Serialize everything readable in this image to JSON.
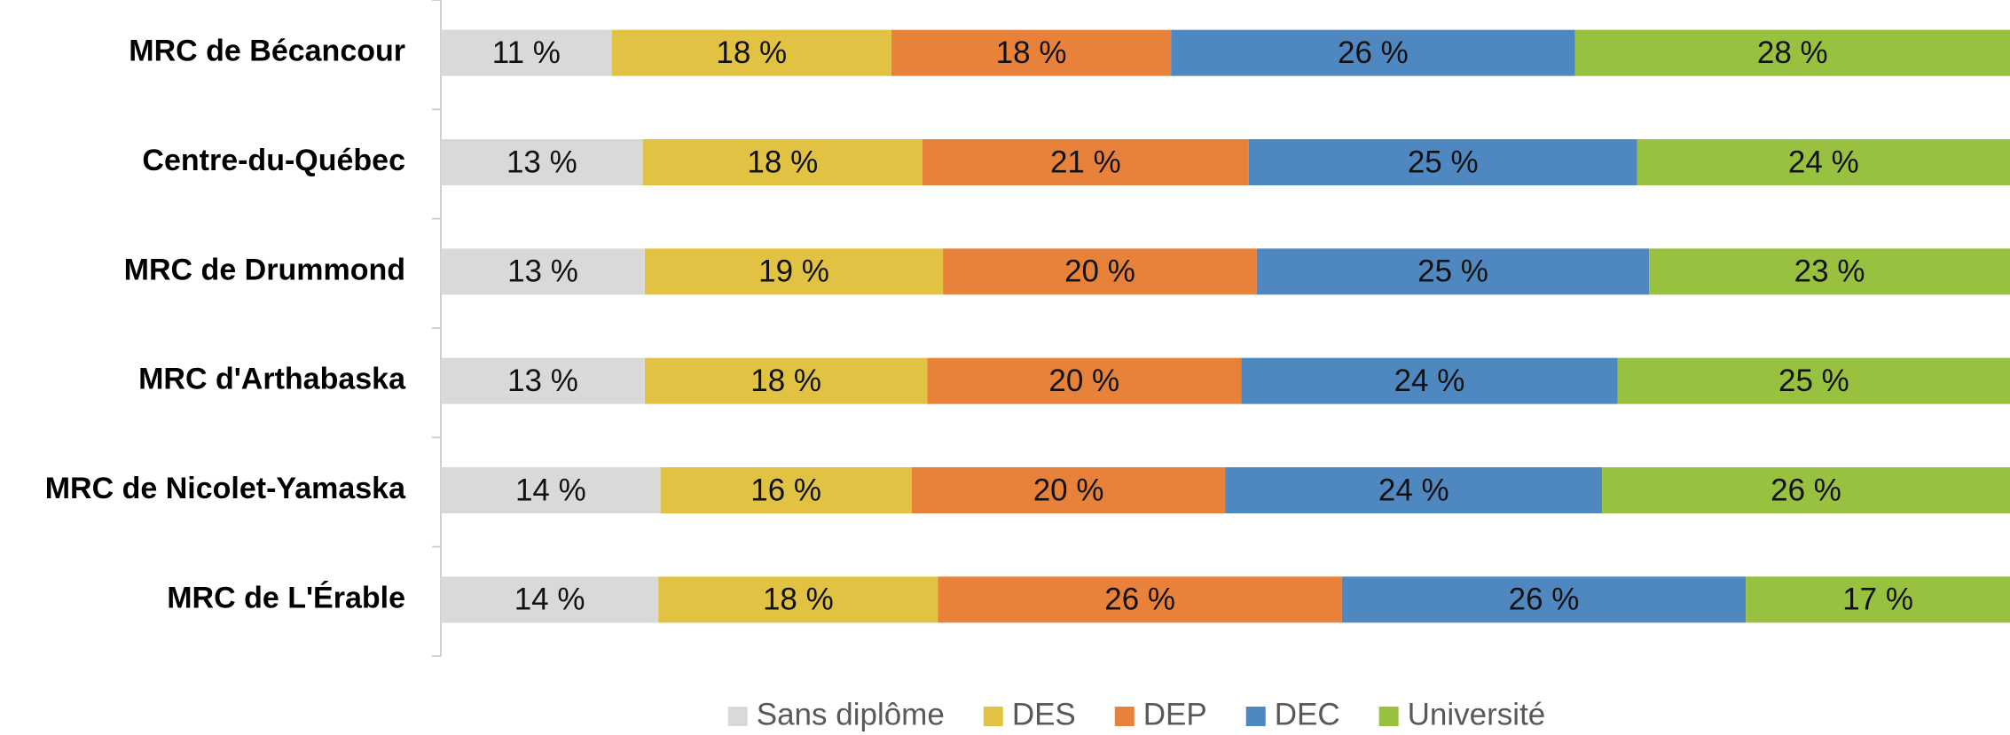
{
  "chart_data": {
    "type": "stacked-bar-100",
    "orientation": "horizontal",
    "categories": [
      "MRC de Bécancour",
      "Centre-du-Québec",
      "MRC de Drummond",
      "MRC d'Arthabaska",
      "MRC de Nicolet-Yamaska",
      "MRC de L'Érable"
    ],
    "series": [
      {
        "name": "Sans diplôme",
        "color": "#d9d9d9",
        "values": [
          11,
          13,
          13,
          13,
          14,
          14
        ],
        "value_labels": [
          "11 %",
          "13 %",
          "13 %",
          "13 %",
          "14 %",
          "14 %"
        ]
      },
      {
        "name": "DES",
        "color": "#e2c242",
        "values": [
          18,
          18,
          19,
          18,
          16,
          18
        ],
        "value_labels": [
          "18 %",
          "18 %",
          "19 %",
          "18 %",
          "16 %",
          "18 %"
        ]
      },
      {
        "name": "DEP",
        "color": "#e8823a",
        "values": [
          18,
          21,
          20,
          20,
          20,
          26
        ],
        "value_labels": [
          "18 %",
          "21 %",
          "20 %",
          "20 %",
          "20 %",
          "26 %"
        ]
      },
      {
        "name": "DEC",
        "color": "#4f88c0",
        "values": [
          26,
          25,
          25,
          24,
          24,
          26
        ],
        "value_labels": [
          "26 %",
          "25 %",
          "25 %",
          "24 %",
          "24 %",
          "26 %"
        ]
      },
      {
        "name": "Université",
        "color": "#97c13f",
        "values": [
          28,
          24,
          23,
          25,
          26,
          17
        ],
        "value_labels": [
          "28 %",
          "24 %",
          "23 %",
          "25 %",
          "26 %",
          "17 %"
        ]
      }
    ],
    "legend": "bottom"
  }
}
